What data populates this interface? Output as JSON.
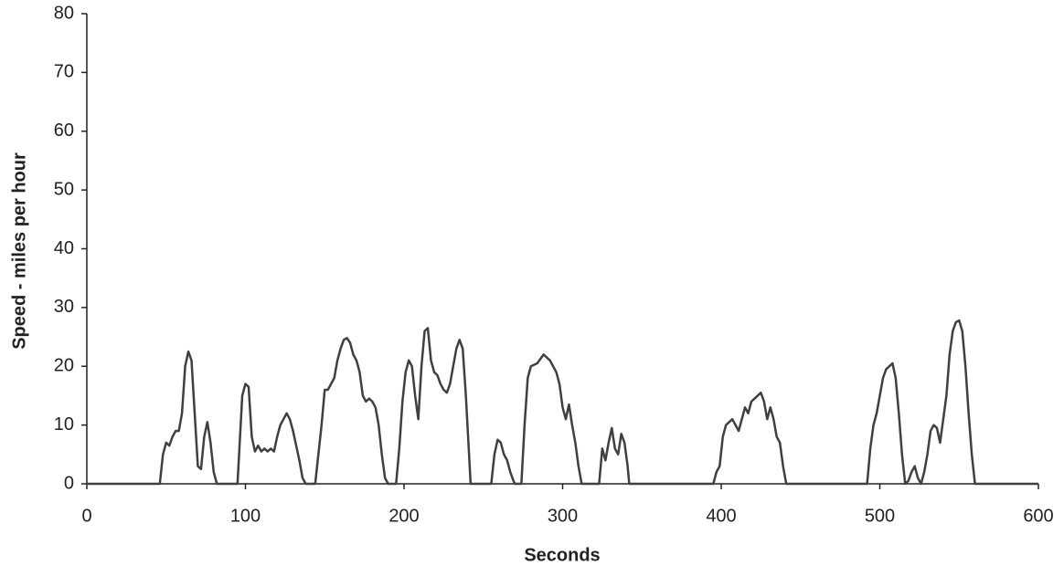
{
  "chart_data": {
    "type": "line",
    "xlabel": "Seconds",
    "ylabel": "Speed - miles per hour",
    "x": [
      0,
      46,
      48,
      50,
      52,
      54,
      56,
      58,
      60,
      62,
      64,
      66,
      68,
      70,
      72,
      74,
      76,
      78,
      80,
      82,
      95,
      96,
      98,
      100,
      102,
      104,
      106,
      108,
      110,
      112,
      114,
      116,
      118,
      120,
      122,
      124,
      126,
      128,
      130,
      132,
      134,
      136,
      138,
      144,
      146,
      148,
      150,
      152,
      154,
      156,
      158,
      160,
      162,
      164,
      166,
      168,
      170,
      172,
      174,
      176,
      178,
      180,
      182,
      184,
      186,
      188,
      190,
      195,
      197,
      199,
      201,
      203,
      205,
      207,
      209,
      211,
      213,
      215,
      217,
      219,
      221,
      223,
      225,
      227,
      229,
      231,
      233,
      235,
      237,
      239,
      241,
      242,
      255,
      257,
      259,
      261,
      263,
      265,
      267,
      269,
      270,
      274,
      276,
      278,
      280,
      284,
      288,
      292,
      296,
      298,
      300,
      302,
      304,
      306,
      308,
      310,
      312,
      323,
      325,
      327,
      329,
      331,
      333,
      335,
      337,
      339,
      341,
      342,
      395,
      397,
      399,
      401,
      403,
      405,
      407,
      409,
      411,
      413,
      415,
      417,
      419,
      421,
      423,
      425,
      427,
      429,
      431,
      433,
      435,
      437,
      439,
      441,
      492,
      494,
      496,
      498,
      500,
      502,
      504,
      506,
      508,
      510,
      512,
      514,
      516,
      518,
      520,
      522,
      524,
      526,
      528,
      530,
      532,
      534,
      536,
      538,
      540,
      542,
      544,
      546,
      548,
      550,
      552,
      554,
      556,
      558,
      560,
      600
    ],
    "series": [
      {
        "name": "Speed",
        "color": "#404040",
        "values": [
          0,
          0,
          5,
          7,
          6.5,
          8,
          9,
          9,
          12,
          20,
          22.5,
          21,
          12,
          3,
          2.5,
          8,
          10.5,
          7,
          2,
          0,
          0,
          5,
          15,
          17,
          16.5,
          8,
          5.5,
          6.5,
          5.5,
          6,
          5.5,
          6,
          5.5,
          8,
          10,
          11,
          12,
          11,
          9,
          6.5,
          4,
          1,
          0,
          0,
          5,
          10,
          16,
          16,
          17,
          18,
          21,
          23,
          24.5,
          24.8,
          24,
          22,
          21,
          19,
          15,
          14,
          14.5,
          14,
          13,
          10,
          5,
          1,
          0,
          0,
          6,
          14,
          19,
          21,
          20,
          15,
          11,
          20,
          26,
          26.5,
          21,
          19,
          18.5,
          17,
          16,
          15.5,
          17,
          20,
          23,
          24.5,
          23,
          15,
          5,
          0,
          0,
          5,
          7.5,
          7,
          5,
          4,
          2,
          0.5,
          0,
          0,
          10,
          18,
          20,
          20.5,
          22,
          21,
          19,
          17,
          13,
          11,
          13.5,
          10,
          7,
          3,
          0,
          0,
          6,
          4,
          7,
          9.5,
          6,
          5,
          8.5,
          7,
          3,
          0,
          0,
          2,
          3,
          8,
          10,
          10.5,
          11,
          10,
          9,
          11,
          13,
          12,
          14,
          14.5,
          15,
          15.5,
          14,
          11,
          13,
          11,
          8,
          7,
          3,
          0,
          0,
          6,
          10,
          12,
          15,
          18,
          19.5,
          20,
          20.5,
          18,
          12,
          5,
          0,
          0.5,
          2,
          3,
          1,
          0,
          2,
          5,
          9,
          10,
          9.5,
          7,
          11,
          15,
          22,
          26,
          27.5,
          27.8,
          26,
          20,
          12,
          5,
          0,
          0
        ]
      }
    ],
    "xlim": [
      0,
      600
    ],
    "xticks": [
      0,
      100,
      200,
      300,
      400,
      500,
      600
    ],
    "ylim": [
      0,
      80
    ],
    "yticks": [
      0,
      10,
      20,
      30,
      40,
      50,
      60,
      70,
      80
    ]
  }
}
